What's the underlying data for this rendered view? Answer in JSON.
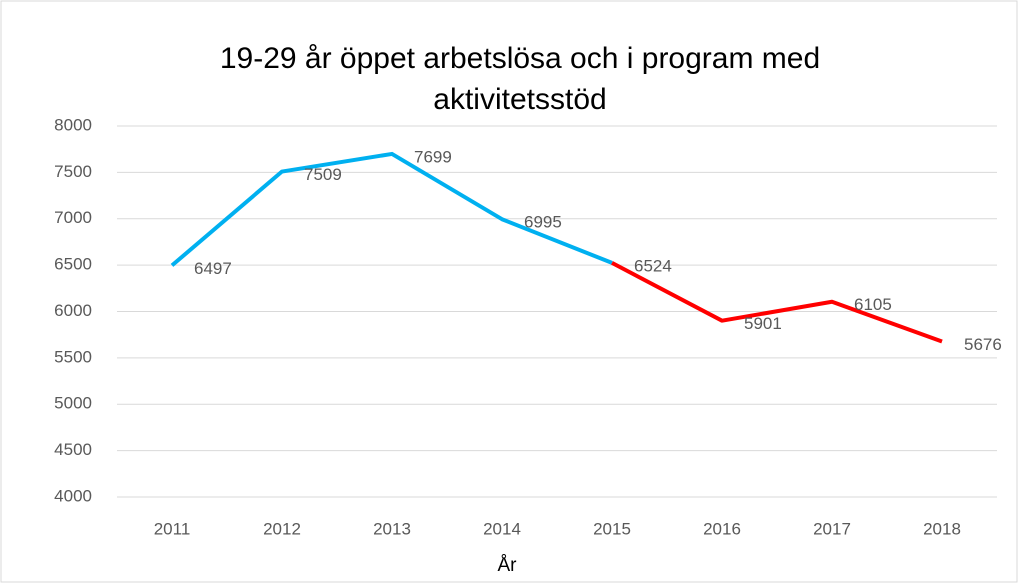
{
  "chart_data": {
    "type": "line",
    "title_lines": [
      "19-29 år öppet arbetslösa och i program med",
      "aktivitetsstöd"
    ],
    "x_label": "År",
    "categories": [
      "2011",
      "2012",
      "2013",
      "2014",
      "2015",
      "2016",
      "2017",
      "2018"
    ],
    "series": [
      {
        "color": "#00b0f0",
        "values": [
          6497,
          7509,
          7699,
          6995,
          6524,
          null,
          null,
          null
        ]
      },
      {
        "color": "#ff0000",
        "values": [
          null,
          null,
          null,
          null,
          6524,
          5901,
          6105,
          5676
        ]
      }
    ],
    "ylim": [
      4000,
      8000
    ],
    "yticks": [
      4000,
      4500,
      5000,
      5500,
      6000,
      6500,
      7000,
      7500,
      8000
    ],
    "grid": true,
    "data_labels": true
  }
}
